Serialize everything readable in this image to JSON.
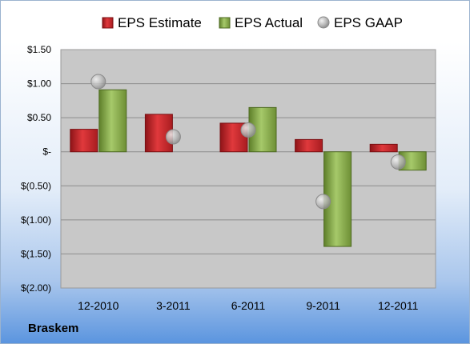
{
  "company": "Braskem",
  "colors": {
    "estimate": "#c0262b",
    "actual": "#82a845",
    "gaap": "#b5b5b5"
  },
  "chart_data": {
    "type": "bar",
    "categories": [
      "12-2010",
      "3-2011",
      "6-2011",
      "9-2011",
      "12-2011"
    ],
    "series": [
      {
        "name": "EPS Estimate",
        "kind": "bar",
        "values": [
          0.33,
          0.55,
          0.42,
          0.18,
          0.11
        ]
      },
      {
        "name": "EPS Actual",
        "kind": "bar",
        "values": [
          0.91,
          null,
          0.65,
          -1.39,
          -0.27
        ]
      },
      {
        "name": "EPS GAAP",
        "kind": "marker",
        "values": [
          1.03,
          0.22,
          0.32,
          -0.73,
          -0.15
        ]
      }
    ],
    "y_ticks": [
      1.5,
      1.0,
      0.5,
      0,
      -0.5,
      -1.0,
      -1.5,
      -2.0
    ],
    "y_tick_labels": [
      "$1.50",
      "$1.00",
      "$0.50",
      "$-",
      "$(0.50)",
      "$(1.00)",
      "$(1.50)",
      "$(2.00)"
    ],
    "ylim": [
      -2.0,
      1.5
    ],
    "grid": true,
    "legend": "top"
  }
}
